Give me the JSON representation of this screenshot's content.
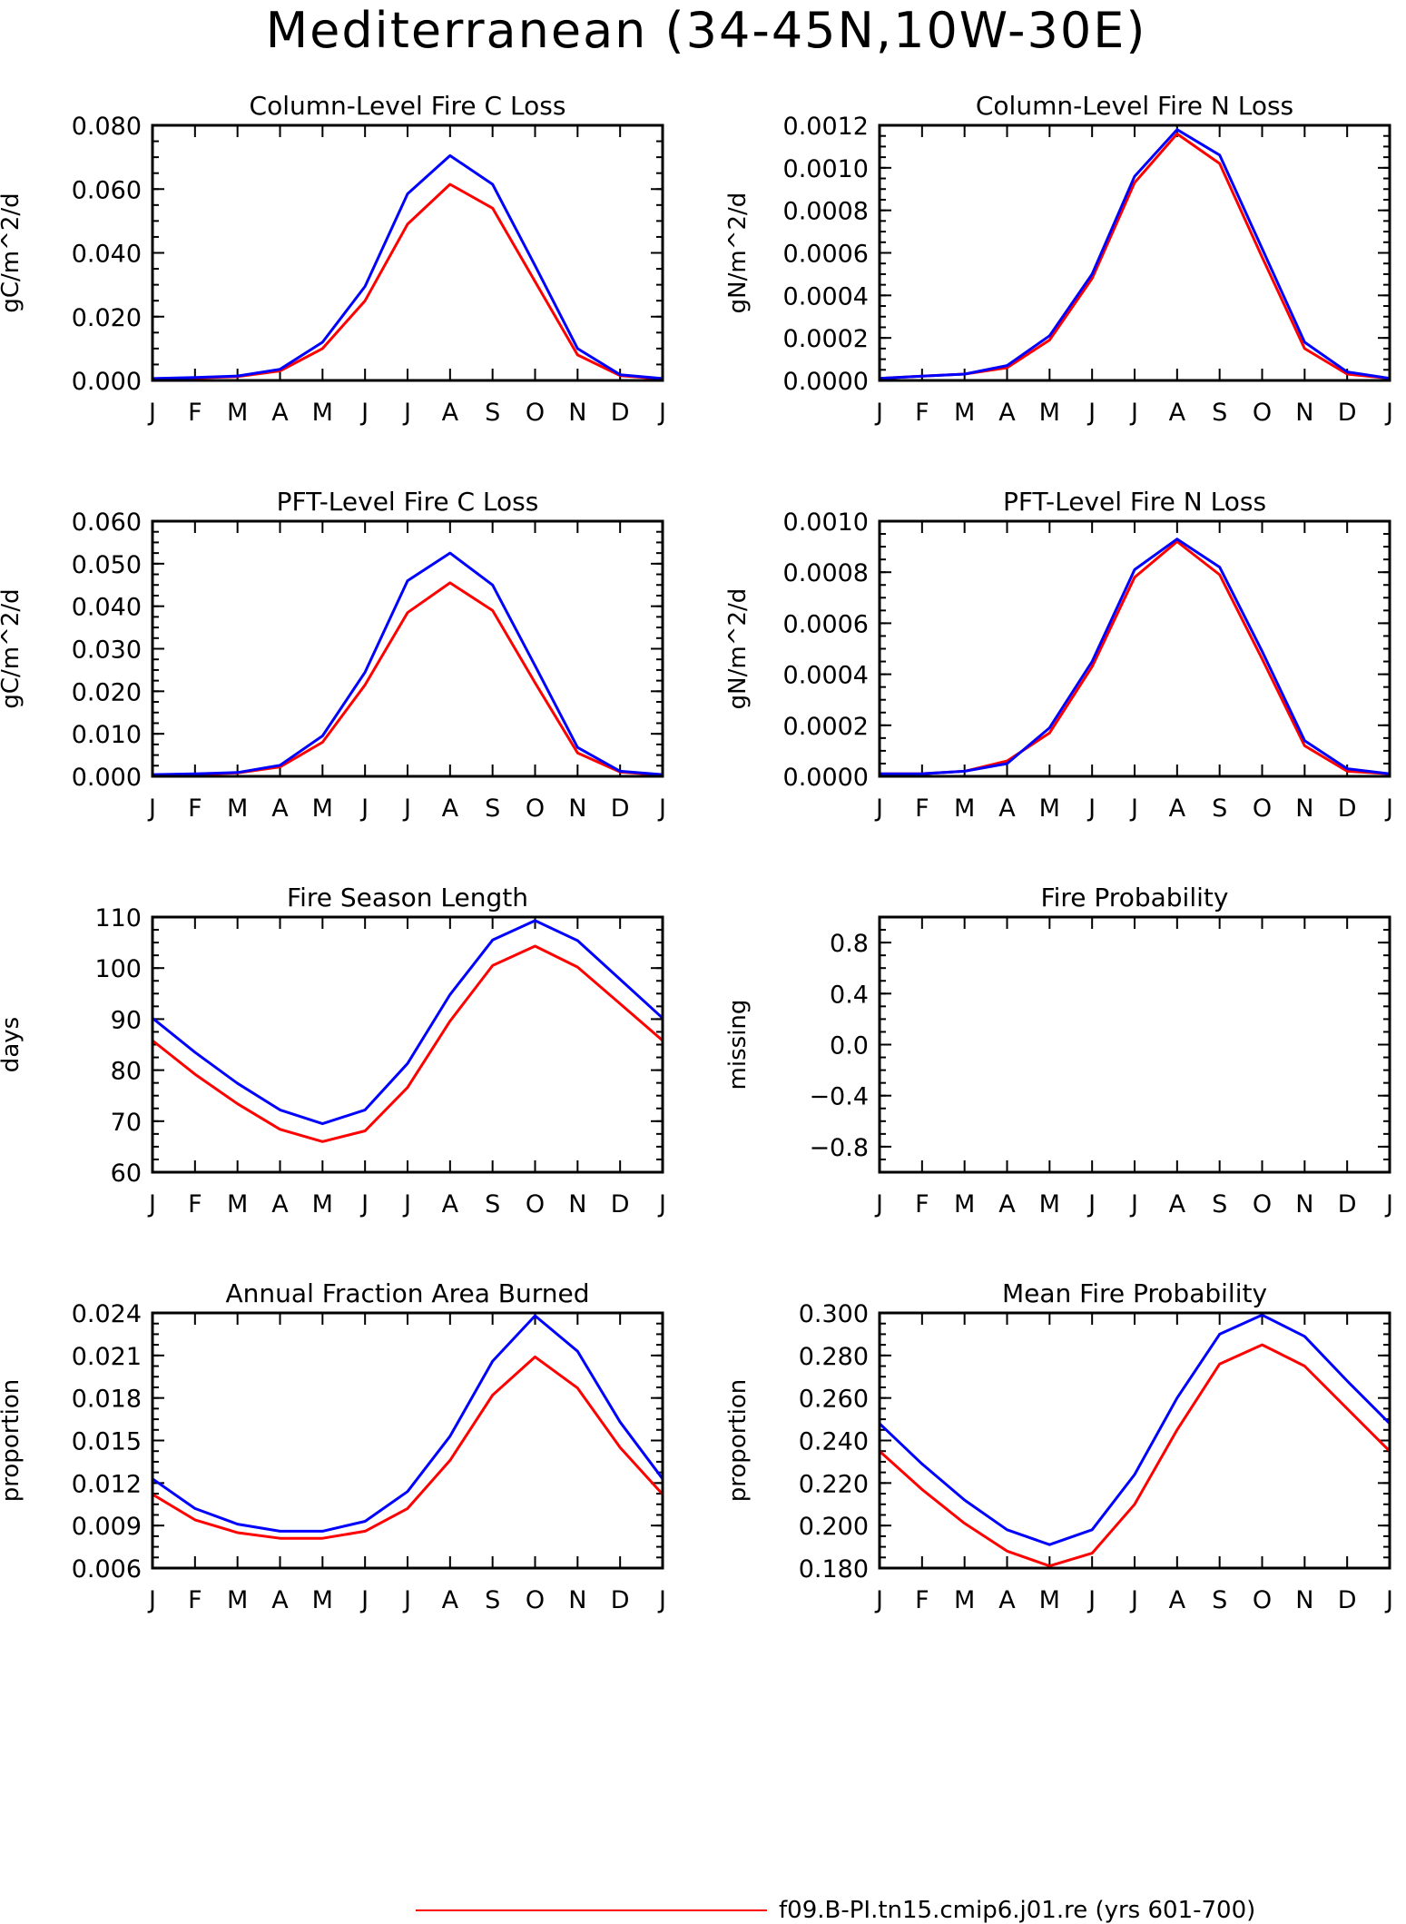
{
  "page_title": "Mediterranean (34-45N,10W-30E)",
  "months": [
    "J",
    "F",
    "M",
    "A",
    "M",
    "J",
    "J",
    "A",
    "S",
    "O",
    "N",
    "D",
    "J"
  ],
  "series_colors": {
    "red": "#ff0000",
    "blue": "#0000ff"
  },
  "legend": {
    "label": "f09.B-PI.tn15.cmip6.j01.re (yrs 601-700)",
    "color": "#ff0000"
  },
  "chart_data": [
    {
      "type": "line",
      "title": "Column-Level Fire C Loss",
      "ylabel": "gC/m^2/d",
      "ylim": [
        0,
        0.08
      ],
      "yticks": [
        "0.000",
        "0.020",
        "0.040",
        "0.060",
        "0.080"
      ],
      "yticks_values": [
        0,
        0.02,
        0.04,
        0.06,
        0.08
      ],
      "series": [
        {
          "color": "red",
          "values": [
            0.0005,
            0.0008,
            0.0012,
            0.003,
            0.01,
            0.025,
            0.049,
            0.0615,
            0.054,
            0.031,
            0.008,
            0.0015,
            0.0005
          ]
        },
        {
          "color": "blue",
          "values": [
            0.0006,
            0.0009,
            0.0014,
            0.0035,
            0.012,
            0.0295,
            0.0585,
            0.0705,
            0.0615,
            0.036,
            0.01,
            0.0018,
            0.0006
          ]
        }
      ]
    },
    {
      "type": "line",
      "title": "Column-Level Fire N Loss",
      "ylabel": "gN/m^2/d",
      "ylim": [
        0,
        0.0012
      ],
      "yticks": [
        "0.0000",
        "0.0002",
        "0.0004",
        "0.0006",
        "0.0008",
        "0.0010",
        "0.0012"
      ],
      "yticks_values": [
        0,
        0.0002,
        0.0004,
        0.0006,
        0.0008,
        0.001,
        0.0012
      ],
      "series": [
        {
          "color": "red",
          "values": [
            1e-05,
            2e-05,
            3e-05,
            6e-05,
            0.00019,
            0.00048,
            0.00093,
            0.00116,
            0.00102,
            0.00058,
            0.00015,
            3e-05,
            1e-05
          ]
        },
        {
          "color": "blue",
          "values": [
            1e-05,
            2e-05,
            3e-05,
            7e-05,
            0.00021,
            0.0005,
            0.00096,
            0.00118,
            0.00106,
            0.00062,
            0.00018,
            4e-05,
            1e-05
          ]
        }
      ]
    },
    {
      "type": "line",
      "title": "PFT-Level Fire C Loss",
      "ylabel": "gC/m^2/d",
      "ylim": [
        0,
        0.06
      ],
      "yticks": [
        "0.000",
        "0.010",
        "0.020",
        "0.030",
        "0.040",
        "0.050",
        "0.060"
      ],
      "yticks_values": [
        0,
        0.01,
        0.02,
        0.03,
        0.04,
        0.05,
        0.06
      ],
      "series": [
        {
          "color": "red",
          "values": [
            0.0003,
            0.0005,
            0.0008,
            0.0022,
            0.008,
            0.0215,
            0.0385,
            0.0455,
            0.039,
            0.022,
            0.0055,
            0.001,
            0.0003
          ]
        },
        {
          "color": "blue",
          "values": [
            0.0004,
            0.0006,
            0.0009,
            0.0026,
            0.0095,
            0.0245,
            0.046,
            0.0525,
            0.045,
            0.026,
            0.0068,
            0.0012,
            0.0004
          ]
        }
      ]
    },
    {
      "type": "line",
      "title": "PFT-Level Fire N Loss",
      "ylabel": "gN/m^2/d",
      "ylim": [
        0,
        0.001
      ],
      "yticks": [
        "0.0000",
        "0.0002",
        "0.0004",
        "0.0006",
        "0.0008",
        "0.0010"
      ],
      "yticks_values": [
        0,
        0.0002,
        0.0004,
        0.0006,
        0.0008,
        0.001
      ],
      "series": [
        {
          "color": "red",
          "values": [
            1e-05,
            1e-05,
            2e-05,
            6e-05,
            0.00017,
            0.00043,
            0.00078,
            0.00092,
            0.00079,
            0.00046,
            0.00012,
            2e-05,
            1e-05
          ]
        },
        {
          "color": "blue",
          "values": [
            1e-05,
            1e-05,
            2e-05,
            5e-05,
            0.00019,
            0.00045,
            0.00081,
            0.00093,
            0.00082,
            0.00049,
            0.00014,
            3e-05,
            1e-05
          ]
        }
      ]
    },
    {
      "type": "line",
      "title": "Fire Season Length",
      "ylabel": "days",
      "ylim": [
        60,
        110
      ],
      "yticks": [
        "60",
        "70",
        "80",
        "90",
        "100",
        "110"
      ],
      "yticks_values": [
        60,
        70,
        80,
        90,
        100,
        110
      ],
      "series": [
        {
          "color": "red",
          "values": [
            85.8,
            79.2,
            73.4,
            68.4,
            66.0,
            68.1,
            76.6,
            89.6,
            100.5,
            104.3,
            100.2,
            93.0,
            85.8
          ]
        },
        {
          "color": "blue",
          "values": [
            90.2,
            83.5,
            77.4,
            72.2,
            69.5,
            72.2,
            81.3,
            94.8,
            105.5,
            109.3,
            105.4,
            97.8,
            90.2
          ]
        }
      ]
    },
    {
      "type": "line",
      "title": "Fire Probability",
      "ylabel": "missing",
      "ylim": [
        -1,
        1
      ],
      "yticks": [
        "-0.8",
        "-0.4",
        "0.0",
        "0.4",
        "0.8"
      ],
      "yticks_values": [
        -0.8,
        -0.4,
        0.0,
        0.4,
        0.8
      ],
      "series": []
    },
    {
      "type": "line",
      "title": "Annual Fraction Area Burned",
      "ylabel": "proportion",
      "ylim": [
        0.006,
        0.024
      ],
      "yticks": [
        "0.006",
        "0.009",
        "0.012",
        "0.015",
        "0.018",
        "0.021",
        "0.024"
      ],
      "yticks_values": [
        0.006,
        0.009,
        0.012,
        0.015,
        0.018,
        0.021,
        0.024
      ],
      "series": [
        {
          "color": "red",
          "values": [
            0.0112,
            0.0094,
            0.0085,
            0.0081,
            0.0081,
            0.0086,
            0.0102,
            0.0136,
            0.0182,
            0.0209,
            0.0187,
            0.0145,
            0.0112
          ]
        },
        {
          "color": "blue",
          "values": [
            0.0123,
            0.0102,
            0.0091,
            0.0086,
            0.0086,
            0.0093,
            0.0114,
            0.0153,
            0.0206,
            0.0238,
            0.0213,
            0.0163,
            0.0123
          ]
        }
      ]
    },
    {
      "type": "line",
      "title": "Mean Fire Probability",
      "ylabel": "proportion",
      "ylim": [
        0.18,
        0.3
      ],
      "yticks": [
        "0.180",
        "0.200",
        "0.220",
        "0.240",
        "0.260",
        "0.280",
        "0.300"
      ],
      "yticks_values": [
        0.18,
        0.2,
        0.22,
        0.24,
        0.26,
        0.28,
        0.3
      ],
      "series": [
        {
          "color": "red",
          "values": [
            0.235,
            0.217,
            0.201,
            0.188,
            0.181,
            0.187,
            0.21,
            0.245,
            0.276,
            0.285,
            0.275,
            0.255,
            0.235
          ]
        },
        {
          "color": "blue",
          "values": [
            0.248,
            0.229,
            0.212,
            0.198,
            0.191,
            0.198,
            0.224,
            0.26,
            0.29,
            0.299,
            0.289,
            0.268,
            0.248
          ]
        }
      ]
    }
  ]
}
